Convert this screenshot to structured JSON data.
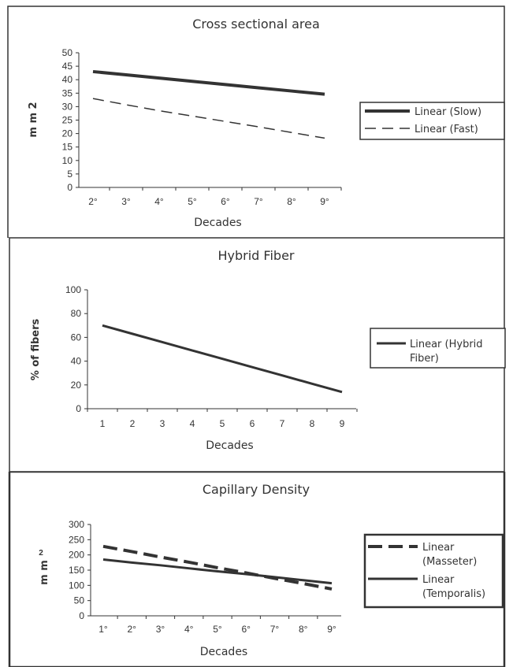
{
  "charts": [
    {
      "type": "line",
      "title": "Cross sectional area",
      "xlabel": "Decades",
      "ylabel": "m m 2",
      "categories": [
        "2°",
        "3°",
        "4°",
        "5°",
        "6°",
        "7°",
        "8°",
        "9°"
      ],
      "ylim": [
        0,
        50
      ],
      "yticks": [
        "0",
        "5",
        "10",
        "15",
        "20",
        "25",
        "30",
        "35",
        "40",
        "45",
        "50"
      ],
      "series": [
        {
          "name": "Linear (Slow)",
          "values": [
            43,
            41.8,
            40.6,
            39.4,
            38.2,
            37,
            35.8,
            34.6
          ],
          "style": "solid-thick",
          "color": "#333333"
        },
        {
          "name": "Linear (Fast)",
          "values": [
            33,
            30.7,
            28.5,
            26.5,
            24.5,
            22.5,
            20.4,
            18.3
          ],
          "style": "dashed",
          "color": "#333333"
        }
      ],
      "legend": "right"
    },
    {
      "type": "line",
      "title": "Hybrid Fiber",
      "xlabel": "Decades",
      "ylabel": "% of fibers",
      "categories": [
        "1",
        "2",
        "3",
        "4",
        "5",
        "6",
        "7",
        "8",
        "9"
      ],
      "ylim": [
        0,
        100
      ],
      "yticks": [
        "0",
        "20",
        "40",
        "60",
        "80",
        "100"
      ],
      "series": [
        {
          "name": "Linear (Hybrid Fiber)",
          "name_lines": [
            "Linear (Hybrid",
            "Fiber)"
          ],
          "values": [
            70,
            63,
            56,
            49,
            42,
            35,
            28,
            21,
            14
          ],
          "style": "solid",
          "color": "#333333"
        }
      ],
      "legend": "right"
    },
    {
      "type": "line",
      "title": "Capillary Density",
      "xlabel": "Decades",
      "ylabel": "m m",
      "ylabel_superscript": "2",
      "categories": [
        "1°",
        "2°",
        "3°",
        "4°",
        "5°",
        "6°",
        "7°",
        "8°",
        "9°"
      ],
      "ylim": [
        0,
        300
      ],
      "yticks": [
        "0",
        "50",
        "100",
        "150",
        "200",
        "250",
        "300"
      ],
      "series": [
        {
          "name": "Linear (Masseter)",
          "name_lines": [
            "Linear",
            "(Masseter)"
          ],
          "values": [
            228,
            211,
            193,
            176,
            158,
            141,
            123,
            106,
            88
          ],
          "style": "dashed-thick",
          "color": "#333333"
        },
        {
          "name": "Linear (Temporalis)",
          "name_lines": [
            "Linear",
            "(Temporalis)"
          ],
          "values": [
            185,
            175,
            166,
            156,
            146,
            137,
            127,
            117,
            107
          ],
          "style": "solid",
          "color": "#333333"
        }
      ],
      "legend": "right"
    }
  ]
}
